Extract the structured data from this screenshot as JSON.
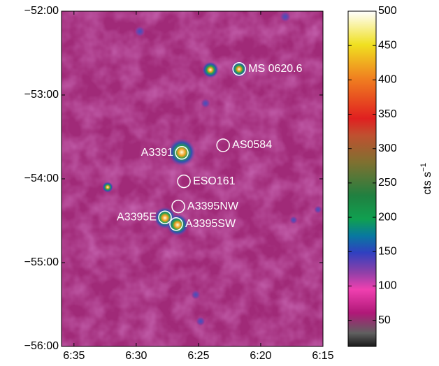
{
  "chart_data": {
    "type": "image",
    "xlim": [
      396,
      375
    ],
    "xticks": [
      {
        "value": 395,
        "label": "6:35"
      },
      {
        "value": 390,
        "label": "6:30"
      },
      {
        "value": 385,
        "label": "6:25"
      },
      {
        "value": 380,
        "label": "6:20"
      },
      {
        "value": 375,
        "label": "6:15"
      }
    ],
    "ylim": [
      -56,
      -52
    ],
    "yticks": [
      {
        "value": -52,
        "label": "−52:00"
      },
      {
        "value": -53,
        "label": "−53:00"
      },
      {
        "value": -54,
        "label": "−54:00"
      },
      {
        "value": -55,
        "label": "−55:00"
      },
      {
        "value": -56,
        "label": "−56:00"
      }
    ],
    "sources": [
      {
        "name": "MS 0620.6",
        "x": 381.73,
        "y": -52.69,
        "side": "right"
      },
      {
        "name": "AS0584",
        "x": 383.02,
        "y": -53.6,
        "side": "right"
      },
      {
        "name": "A3391",
        "x": 386.34,
        "y": -53.69,
        "side": "left"
      },
      {
        "name": "ESO161",
        "x": 386.17,
        "y": -54.03,
        "side": "right"
      },
      {
        "name": "A3395NW",
        "x": 386.62,
        "y": -54.33,
        "side": "right"
      },
      {
        "name": "A3395E",
        "x": 387.69,
        "y": -54.46,
        "side": "left"
      },
      {
        "name": "A3395SW",
        "x": 386.79,
        "y": -54.54,
        "side": "right"
      }
    ],
    "colorbar": {
      "label": "cts s",
      "label_sup": "−1",
      "clim": [
        12,
        500
      ],
      "ticks": [
        50,
        100,
        150,
        200,
        250,
        300,
        350,
        400,
        450,
        500
      ]
    }
  }
}
